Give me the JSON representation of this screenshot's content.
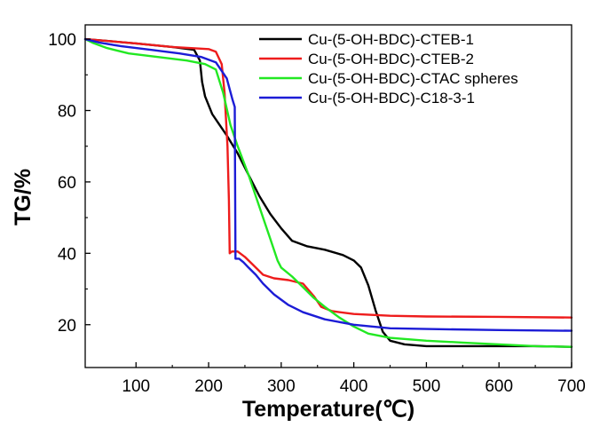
{
  "chart_data": {
    "type": "line",
    "title": "",
    "xlabel": "Temperature(℃)",
    "ylabel": "TG/%",
    "xlim": [
      30,
      700
    ],
    "ylim": [
      8,
      104
    ],
    "xticks": [
      100,
      200,
      300,
      400,
      500,
      600,
      700
    ],
    "yticks": [
      20,
      40,
      60,
      80,
      100
    ],
    "grid": false,
    "legend_position": "top-right",
    "series": [
      {
        "name": "Cu-(5-OH-BDC)-CTEB-1",
        "color": "#000000",
        "points": [
          [
            30,
            100
          ],
          [
            60,
            99.5
          ],
          [
            100,
            98.8
          ],
          [
            150,
            97.8
          ],
          [
            180,
            97
          ],
          [
            188,
            94
          ],
          [
            191,
            88
          ],
          [
            195,
            84
          ],
          [
            205,
            79
          ],
          [
            215,
            76
          ],
          [
            225,
            73
          ],
          [
            240,
            68
          ],
          [
            255,
            62
          ],
          [
            270,
            56
          ],
          [
            285,
            51
          ],
          [
            300,
            47
          ],
          [
            315,
            43.5
          ],
          [
            335,
            42
          ],
          [
            360,
            41
          ],
          [
            385,
            39.5
          ],
          [
            400,
            38
          ],
          [
            410,
            36
          ],
          [
            420,
            31
          ],
          [
            430,
            24
          ],
          [
            440,
            18
          ],
          [
            450,
            15.5
          ],
          [
            470,
            14.5
          ],
          [
            500,
            14
          ],
          [
            550,
            14
          ],
          [
            600,
            14
          ],
          [
            650,
            14
          ],
          [
            700,
            13.8
          ]
        ]
      },
      {
        "name": "Cu-(5-OH-BDC)-CTEB-2",
        "color": "#ee1c1c",
        "points": [
          [
            30,
            100
          ],
          [
            60,
            99.5
          ],
          [
            100,
            98.8
          ],
          [
            150,
            97.8
          ],
          [
            200,
            97.2
          ],
          [
            210,
            96.5
          ],
          [
            218,
            93
          ],
          [
            222,
            85
          ],
          [
            226,
            70
          ],
          [
            228,
            55
          ],
          [
            229,
            40
          ],
          [
            232,
            40.5
          ],
          [
            240,
            40.5
          ],
          [
            250,
            39
          ],
          [
            260,
            37
          ],
          [
            275,
            34
          ],
          [
            290,
            33
          ],
          [
            310,
            32.5
          ],
          [
            330,
            31.5
          ],
          [
            345,
            28
          ],
          [
            355,
            25
          ],
          [
            370,
            23.8
          ],
          [
            400,
            23
          ],
          [
            450,
            22.5
          ],
          [
            500,
            22.3
          ],
          [
            600,
            22.2
          ],
          [
            700,
            22
          ]
        ]
      },
      {
        "name": "Cu-(5-OH-BDC)-CTAC spheres",
        "color": "#22e822",
        "points": [
          [
            30,
            100
          ],
          [
            40,
            99
          ],
          [
            60,
            97.5
          ],
          [
            90,
            96
          ],
          [
            130,
            95
          ],
          [
            170,
            94
          ],
          [
            195,
            93
          ],
          [
            210,
            91.5
          ],
          [
            220,
            85
          ],
          [
            230,
            76
          ],
          [
            240,
            70
          ],
          [
            255,
            62
          ],
          [
            270,
            53
          ],
          [
            285,
            44
          ],
          [
            295,
            38
          ],
          [
            300,
            36
          ],
          [
            315,
            33.5
          ],
          [
            330,
            30.5
          ],
          [
            345,
            27.5
          ],
          [
            360,
            25
          ],
          [
            380,
            22
          ],
          [
            400,
            19.5
          ],
          [
            420,
            17.5
          ],
          [
            450,
            16.3
          ],
          [
            500,
            15.5
          ],
          [
            550,
            15
          ],
          [
            600,
            14.5
          ],
          [
            650,
            14
          ],
          [
            700,
            13.8
          ]
        ]
      },
      {
        "name": "Cu-(5-OH-BDC)-C18-3-1",
        "color": "#1c1cd6",
        "points": [
          [
            30,
            100
          ],
          [
            50,
            99
          ],
          [
            80,
            98
          ],
          [
            120,
            97
          ],
          [
            160,
            96
          ],
          [
            190,
            95
          ],
          [
            210,
            93.5
          ],
          [
            225,
            89
          ],
          [
            233,
            83
          ],
          [
            236,
            81
          ],
          [
            237,
            38.5
          ],
          [
            242,
            38.5
          ],
          [
            248,
            37.5
          ],
          [
            255,
            36
          ],
          [
            265,
            34
          ],
          [
            275,
            31.5
          ],
          [
            290,
            28.5
          ],
          [
            310,
            25.5
          ],
          [
            330,
            23.5
          ],
          [
            360,
            21.5
          ],
          [
            400,
            20
          ],
          [
            450,
            19
          ],
          [
            500,
            18.8
          ],
          [
            600,
            18.5
          ],
          [
            700,
            18.3
          ]
        ]
      }
    ]
  }
}
